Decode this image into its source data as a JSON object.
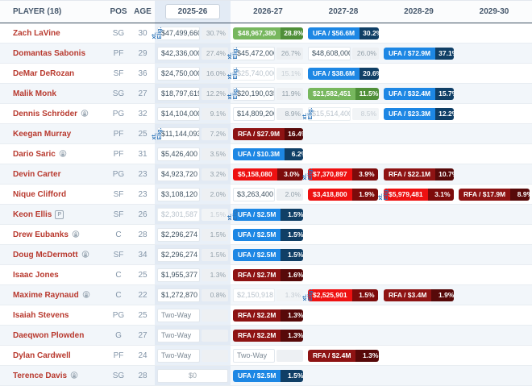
{
  "header": {
    "player": "PLAYER (18)",
    "pos": "POS",
    "age": "AGE",
    "seasons": [
      "2025-26",
      "2026-27",
      "2027-28",
      "2028-29",
      "2029-30"
    ],
    "selected_season": "2025-26"
  },
  "ext_label": "xt. Elig.",
  "legend_colors": {
    "guaranteed_green": "#77b75e",
    "ufa_blue": "#1d87e4",
    "team_option_red": "#ee1111",
    "rfa_dark_red": "#8e1313",
    "player_name_red": "#b8392e",
    "ext_marker_blue": "#2d74b8"
  },
  "rows": [
    {
      "name": "Zach LaVine",
      "icon": null,
      "pos": "SG",
      "age": "30",
      "cells": [
        {
          "type": "plain",
          "value": "$47,499,660",
          "pct": "30.7%",
          "ext": true
        },
        {
          "type": "green",
          "value": "$48,967,380",
          "pct": "28.8%"
        },
        {
          "type": "blue",
          "value": "UFA / $56.6M",
          "pct": "30.2%"
        },
        {
          "type": "empty"
        },
        {
          "type": "empty"
        }
      ]
    },
    {
      "name": "Domantas Sabonis",
      "icon": null,
      "pos": "PF",
      "age": "29",
      "cells": [
        {
          "type": "plain",
          "value": "$42,336,000",
          "pct": "27.4%"
        },
        {
          "type": "plain",
          "value": "$45,472,000",
          "pct": "26.7%",
          "ext": true
        },
        {
          "type": "plain",
          "value": "$48,608,000",
          "pct": "26.0%"
        },
        {
          "type": "blue",
          "value": "UFA / $72.9M",
          "pct": "37.1%"
        },
        {
          "type": "empty"
        }
      ]
    },
    {
      "name": "DeMar DeRozan",
      "icon": null,
      "pos": "SF",
      "age": "36",
      "cells": [
        {
          "type": "plain",
          "value": "$24,750,000",
          "pct": "16.0%"
        },
        {
          "type": "muted",
          "value": "$25,740,000",
          "pct": "15.1%",
          "ext": true
        },
        {
          "type": "blue",
          "value": "UFA / $38.6M",
          "pct": "20.6%"
        },
        {
          "type": "empty"
        },
        {
          "type": "empty"
        }
      ]
    },
    {
      "name": "Malik Monk",
      "icon": null,
      "pos": "SG",
      "age": "27",
      "cells": [
        {
          "type": "plain",
          "value": "$18,797,619",
          "pct": "12.2%"
        },
        {
          "type": "plain",
          "value": "$20,190,035",
          "pct": "11.9%",
          "ext": true
        },
        {
          "type": "green",
          "value": "$21,582,451",
          "pct": "11.5%"
        },
        {
          "type": "blue",
          "value": "UFA / $32.4M",
          "pct": "15.7%"
        },
        {
          "type": "empty"
        }
      ]
    },
    {
      "name": "Dennis Schröder",
      "icon": "lock",
      "pos": "PG",
      "age": "32",
      "cells": [
        {
          "type": "plain",
          "value": "$14,104,000",
          "pct": "9.1%"
        },
        {
          "type": "plain",
          "value": "$14,809,200",
          "pct": "8.9%"
        },
        {
          "type": "muted",
          "value": "$15,514,400",
          "pct": "8.5%",
          "ext": true
        },
        {
          "type": "blue",
          "value": "UFA / $23.3M",
          "pct": "12.2%"
        },
        {
          "type": "empty"
        }
      ]
    },
    {
      "name": "Keegan Murray",
      "icon": null,
      "pos": "PF",
      "age": "25",
      "cells": [
        {
          "type": "plain",
          "value": "$11,144,093",
          "pct": "7.2%",
          "ext": true
        },
        {
          "type": "darkred",
          "value": "RFA / $27.9M",
          "pct": "16.4%"
        },
        {
          "type": "empty"
        },
        {
          "type": "empty"
        },
        {
          "type": "empty"
        }
      ]
    },
    {
      "name": "Dario Saric",
      "icon": "lock",
      "pos": "PF",
      "age": "31",
      "cells": [
        {
          "type": "plain",
          "value": "$5,426,400",
          "pct": "3.5%"
        },
        {
          "type": "blue",
          "value": "UFA / $10.3M",
          "pct": "6.2%"
        },
        {
          "type": "empty"
        },
        {
          "type": "empty"
        },
        {
          "type": "empty"
        }
      ]
    },
    {
      "name": "Devin Carter",
      "icon": null,
      "pos": "PG",
      "age": "23",
      "cells": [
        {
          "type": "plain",
          "value": "$4,923,720",
          "pct": "3.2%"
        },
        {
          "type": "red",
          "value": "$5,158,080",
          "pct": "3.0%"
        },
        {
          "type": "red",
          "value": "$7,370,897",
          "pct": "3.9%",
          "ext": true
        },
        {
          "type": "darkred",
          "value": "RFA / $22.1M",
          "pct": "10.7%"
        },
        {
          "type": "empty"
        }
      ]
    },
    {
      "name": "Nique Clifford",
      "icon": null,
      "pos": "SF",
      "age": "23",
      "cells": [
        {
          "type": "plain",
          "value": "$3,108,120",
          "pct": "2.0%"
        },
        {
          "type": "plain",
          "value": "$3,263,400",
          "pct": "2.0%"
        },
        {
          "type": "red",
          "value": "$3,418,800",
          "pct": "1.9%"
        },
        {
          "type": "red",
          "value": "$5,979,481",
          "pct": "3.1%",
          "ext": true
        },
        {
          "type": "darkred",
          "value": "RFA / $17.9M",
          "pct": "8.9%"
        }
      ]
    },
    {
      "name": "Keon Ellis",
      "icon": "p",
      "pos": "SF",
      "age": "26",
      "cells": [
        {
          "type": "muted",
          "value": "$2,301,587",
          "pct": "1.5%"
        },
        {
          "type": "blue",
          "value": "UFA / $2.5M",
          "pct": "1.5%",
          "ext": true
        },
        {
          "type": "empty"
        },
        {
          "type": "empty"
        },
        {
          "type": "empty"
        }
      ]
    },
    {
      "name": "Drew Eubanks",
      "icon": "lock",
      "pos": "C",
      "age": "28",
      "cells": [
        {
          "type": "plain",
          "value": "$2,296,274",
          "pct": "1.5%"
        },
        {
          "type": "blue",
          "value": "UFA / $2.5M",
          "pct": "1.5%"
        },
        {
          "type": "empty"
        },
        {
          "type": "empty"
        },
        {
          "type": "empty"
        }
      ]
    },
    {
      "name": "Doug McDermott",
      "icon": "lock",
      "pos": "SF",
      "age": "34",
      "cells": [
        {
          "type": "plain",
          "value": "$2,296,274",
          "pct": "1.5%"
        },
        {
          "type": "blue",
          "value": "UFA / $2.5M",
          "pct": "1.5%"
        },
        {
          "type": "empty"
        },
        {
          "type": "empty"
        },
        {
          "type": "empty"
        }
      ]
    },
    {
      "name": "Isaac Jones",
      "icon": null,
      "pos": "C",
      "age": "25",
      "cells": [
        {
          "type": "plain",
          "value": "$1,955,377",
          "pct": "1.3%"
        },
        {
          "type": "darkred",
          "value": "RFA / $2.7M",
          "pct": "1.6%"
        },
        {
          "type": "empty"
        },
        {
          "type": "empty"
        },
        {
          "type": "empty"
        }
      ]
    },
    {
      "name": "Maxime Raynaud",
      "icon": "lock",
      "pos": "C",
      "age": "22",
      "cells": [
        {
          "type": "plain",
          "value": "$1,272,870",
          "pct": "0.8%"
        },
        {
          "type": "muted",
          "value": "$2,150,918",
          "pct": "1.3%"
        },
        {
          "type": "red",
          "value": "$2,525,901",
          "pct": "1.5%",
          "ext": true
        },
        {
          "type": "darkred",
          "value": "RFA / $3.4M",
          "pct": "1.9%"
        },
        {
          "type": "empty"
        }
      ]
    },
    {
      "name": "Isaiah Stevens",
      "icon": null,
      "pos": "PG",
      "age": "25",
      "cells": [
        {
          "type": "twoway",
          "value": "Two-Way",
          "pct": ""
        },
        {
          "type": "darkred",
          "value": "RFA / $2.2M",
          "pct": "1.3%"
        },
        {
          "type": "empty"
        },
        {
          "type": "empty"
        },
        {
          "type": "empty"
        }
      ]
    },
    {
      "name": "Daeqwon Plowden",
      "icon": null,
      "pos": "G",
      "age": "27",
      "cells": [
        {
          "type": "twoway",
          "value": "Two-Way",
          "pct": ""
        },
        {
          "type": "darkred",
          "value": "RFA / $2.2M",
          "pct": "1.3%"
        },
        {
          "type": "empty"
        },
        {
          "type": "empty"
        },
        {
          "type": "empty"
        }
      ]
    },
    {
      "name": "Dylan Cardwell",
      "icon": null,
      "pos": "PF",
      "age": "24",
      "cells": [
        {
          "type": "twoway",
          "value": "Two-Way",
          "pct": ""
        },
        {
          "type": "twoway",
          "value": "Two-Way",
          "pct": ""
        },
        {
          "type": "darkred",
          "value": "RFA / $2.4M",
          "pct": "1.3%"
        },
        {
          "type": "empty"
        },
        {
          "type": "empty"
        }
      ]
    },
    {
      "name": "Terence Davis",
      "icon": "lock",
      "pos": "SG",
      "age": "28",
      "cells": [
        {
          "type": "zero",
          "value": "$0"
        },
        {
          "type": "blue",
          "value": "UFA / $2.5M",
          "pct": "1.5%"
        },
        {
          "type": "empty"
        },
        {
          "type": "empty"
        },
        {
          "type": "empty"
        }
      ]
    }
  ]
}
